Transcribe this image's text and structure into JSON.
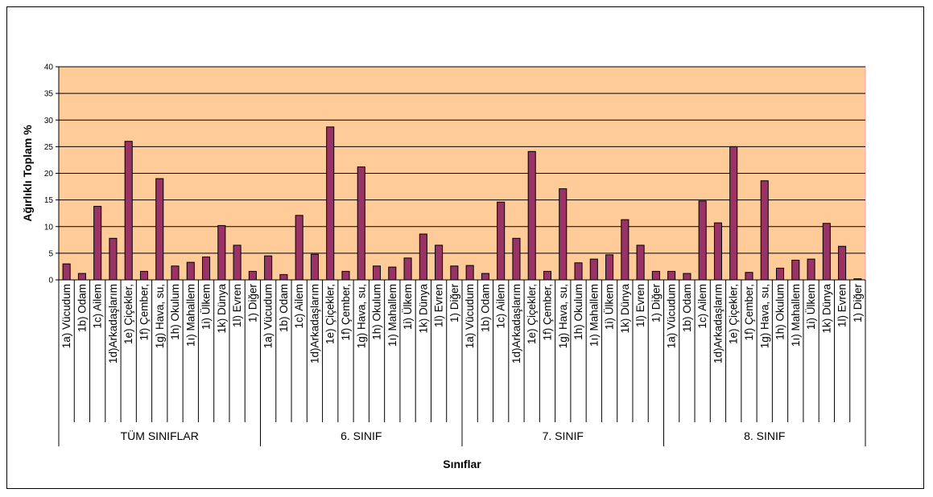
{
  "chart_data": {
    "type": "bar",
    "title": "",
    "xlabel": "Sınıflar",
    "ylabel": "Ağırlıklı Toplam %",
    "ylim": [
      0,
      40
    ],
    "yticks": [
      0,
      5,
      10,
      15,
      20,
      25,
      30,
      35,
      40
    ],
    "grid": true,
    "legend": "none",
    "colors": {
      "plot_background": "#FFCC99",
      "bar_fill": "#993366",
      "bar_stroke": "#000000",
      "gridline": "#000000",
      "plot_border": "#FF99CC"
    },
    "groups": [
      {
        "name": "TÜM SINIFLAR",
        "categories": [
          "1a) Vücudum",
          "1b) Odam",
          "1c) Ailem",
          "1d)Arkadaşlarım",
          "1e) Çiçekler,",
          "1f) Çember,",
          "1g) Hava, su,",
          "1h) Okulum",
          "1ı) Mahallem",
          "1i) Ülkem",
          "1k) Dünya",
          "1l) Evren",
          "1) Diğer"
        ],
        "values": [
          3.0,
          1.2,
          13.8,
          7.8,
          26.0,
          1.6,
          19.0,
          2.6,
          3.3,
          4.3,
          10.2,
          6.5,
          1.6
        ]
      },
      {
        "name": "6. SINIF",
        "categories": [
          "1a) Vücudum",
          "1b) Odam",
          "1c) Ailem",
          "1d)Arkadaşlarım",
          "1e) Çiçekler,",
          "1f) Çember,",
          "1g) Hava, su,",
          "1h) Okulum",
          "1ı) Mahallem",
          "1i) Ülkem",
          "1k) Dünya",
          "1l) Evren",
          "1) Diğer"
        ],
        "values": [
          4.5,
          1.0,
          12.1,
          4.8,
          28.7,
          1.6,
          21.2,
          2.6,
          2.4,
          4.1,
          8.6,
          6.5,
          2.6
        ]
      },
      {
        "name": "7. SINIF",
        "categories": [
          "1a) Vücudum",
          "1b) Odam",
          "1c) Ailem",
          "1d)Arkadaşlarım",
          "1e) Çiçekler,",
          "1f) Çember,",
          "1g) Hava, su,",
          "1h) Okulum",
          "1ı) Mahallem",
          "1i) Ülkem",
          "1k) Dünya",
          "1l) Evren",
          "1) Diğer"
        ],
        "values": [
          2.7,
          1.2,
          14.6,
          7.8,
          24.1,
          1.6,
          17.1,
          3.2,
          3.9,
          4.7,
          11.3,
          6.5,
          1.6
        ]
      },
      {
        "name": "8. SINIF",
        "categories": [
          "1a) Vücudum",
          "1b) Odam",
          "1c) Ailem",
          "1d)Arkadaşlarım",
          "1e) Çiçekler,",
          "1f) Çember,",
          "1g) Hava, su,",
          "1h) Okulum",
          "1ı) Mahallem",
          "1i) Ülkem",
          "1k) Dünya",
          "1l) Evren",
          "1) Diğer"
        ],
        "values": [
          1.6,
          1.2,
          14.8,
          10.7,
          25.0,
          1.4,
          18.6,
          2.2,
          3.7,
          3.9,
          10.6,
          6.3,
          0.2
        ]
      }
    ]
  }
}
